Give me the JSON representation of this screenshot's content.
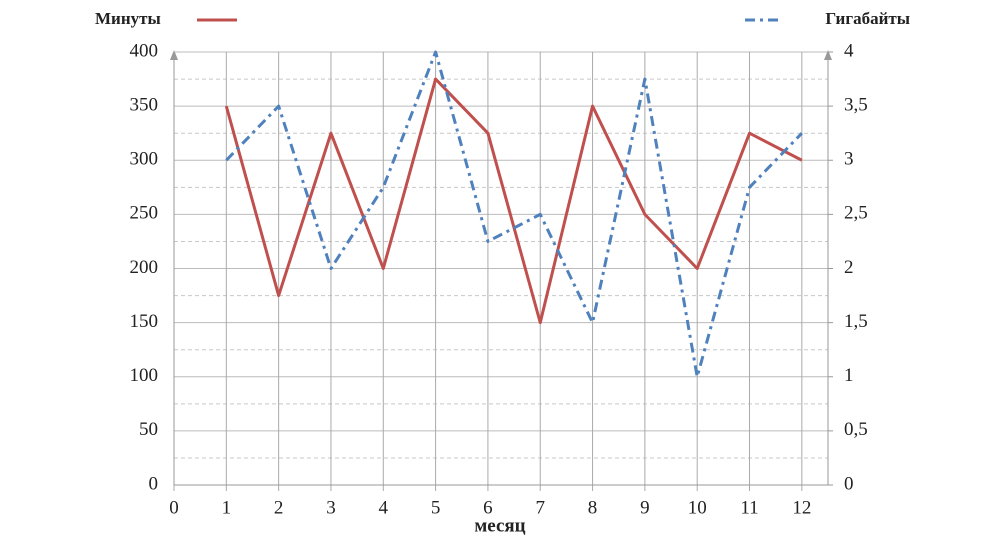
{
  "chart_data": {
    "type": "line",
    "x_label": "месяц",
    "x": [
      1,
      2,
      3,
      4,
      5,
      6,
      7,
      8,
      9,
      10,
      11,
      12
    ],
    "xlim": [
      0,
      12.5
    ],
    "xticks": [
      0,
      1,
      2,
      3,
      4,
      5,
      6,
      7,
      8,
      9,
      10,
      11,
      12
    ],
    "ylim": [
      0,
      400
    ],
    "yticks": [
      0,
      50,
      100,
      150,
      200,
      250,
      300,
      350,
      400
    ],
    "minor_yticks": [
      25,
      75,
      125,
      175,
      225,
      275,
      325,
      375
    ],
    "y2lim": [
      0,
      4
    ],
    "y2ticks": [
      0,
      {
        "value": 0.5,
        "label": "0,5"
      },
      1,
      {
        "value": 1.5,
        "label": "1,5"
      },
      2,
      {
        "value": 2.5,
        "label": "2,5"
      },
      3,
      {
        "value": 3.5,
        "label": "3,5"
      },
      4
    ],
    "grid": true,
    "series": [
      {
        "name": "Минуты",
        "color": "#c0504d",
        "dash": "solid",
        "values": [
          350,
          175,
          325,
          200,
          375,
          325,
          150,
          350,
          250,
          200,
          325,
          300
        ]
      },
      {
        "name": "Гигабайты",
        "color": "#4f81bd",
        "dash": "dashdot",
        "axis": "y2",
        "values": [
          3,
          3.5,
          2,
          2.75,
          4,
          2.25,
          2.5,
          1.5,
          3.75,
          1,
          2.75,
          3.25
        ]
      }
    ]
  }
}
